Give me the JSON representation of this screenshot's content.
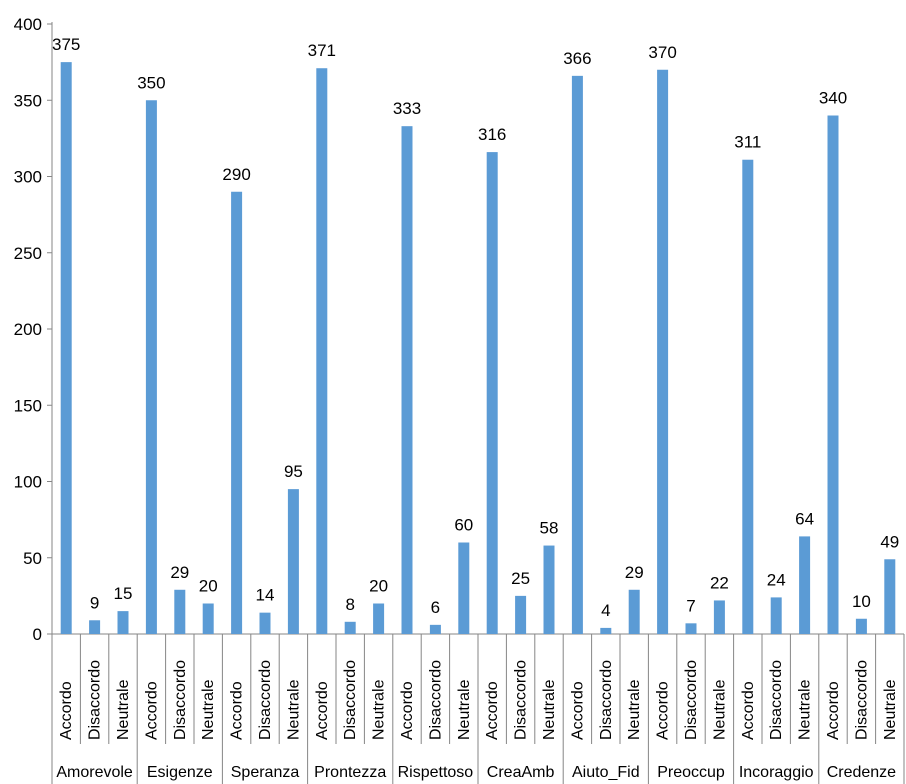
{
  "chart_data": {
    "type": "bar",
    "title": "",
    "xlabel": "",
    "ylabel": "",
    "ylim": [
      0,
      400
    ],
    "yticks": [
      0,
      50,
      100,
      150,
      200,
      250,
      300,
      350,
      400
    ],
    "grid": false,
    "legend": "none",
    "bar_color": "#5b9bd5",
    "groups": [
      {
        "name": "Amorevole",
        "categories": [
          "Accordo",
          "Disaccordo",
          "Neutrale"
        ],
        "values": [
          375,
          9,
          15
        ]
      },
      {
        "name": "Esigenze",
        "categories": [
          "Accordo",
          "Disaccordo",
          "Neutrale"
        ],
        "values": [
          350,
          29,
          20
        ]
      },
      {
        "name": "Speranza",
        "categories": [
          "Accordo",
          "Disaccordo",
          "Neutrale"
        ],
        "values": [
          290,
          14,
          95
        ]
      },
      {
        "name": "Prontezza",
        "categories": [
          "Accordo",
          "Disaccordo",
          "Neutrale"
        ],
        "values": [
          371,
          8,
          20
        ]
      },
      {
        "name": "Rispettoso",
        "categories": [
          "Accordo",
          "Disaccordo",
          "Neutrale"
        ],
        "values": [
          333,
          6,
          60
        ]
      },
      {
        "name": "CreaAmb",
        "categories": [
          "Accordo",
          "Disaccordo",
          "Neutrale"
        ],
        "values": [
          316,
          25,
          58
        ]
      },
      {
        "name": "Aiuto_Fid",
        "categories": [
          "Accordo",
          "Disaccordo",
          "Neutrale"
        ],
        "values": [
          366,
          4,
          29
        ]
      },
      {
        "name": "Preoccup",
        "categories": [
          "Accordo",
          "Disaccordo",
          "Neutrale"
        ],
        "values": [
          370,
          7,
          22
        ]
      },
      {
        "name": "Incoraggio",
        "categories": [
          "Accordo",
          "Disaccordo",
          "Neutrale"
        ],
        "values": [
          311,
          24,
          64
        ]
      },
      {
        "name": "Credenze",
        "categories": [
          "Accordo",
          "Disaccordo",
          "Neutrale"
        ],
        "values": [
          340,
          10,
          49
        ]
      }
    ]
  }
}
